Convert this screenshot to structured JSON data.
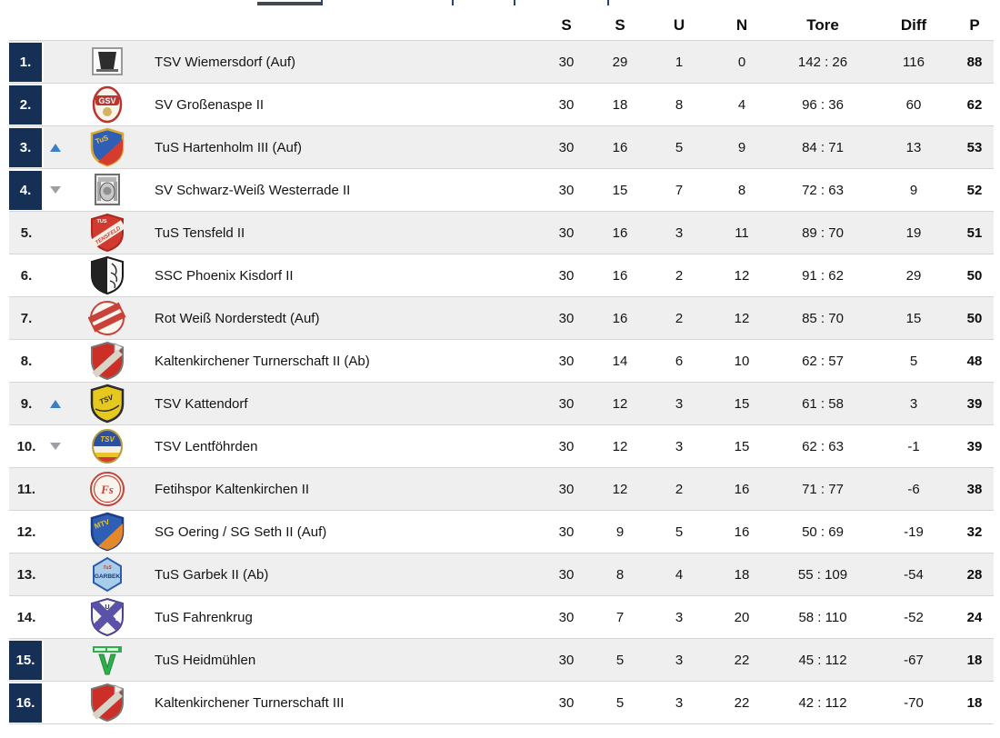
{
  "colors": {
    "highlight": "#152f55",
    "row-alt": "#efefef",
    "up": "#3a80c4",
    "down": "#9aa0a6",
    "separator": "#d5d5d5"
  },
  "header": {
    "columns": [
      "S",
      "S",
      "U",
      "N",
      "Tore",
      "Diff",
      "P"
    ]
  },
  "standings": [
    {
      "pos": "1.",
      "move": "",
      "team": "TSV Wiemersdorf (Auf)",
      "highlight": true,
      "played": "30",
      "won": "29",
      "drawn": "1",
      "lost": "0",
      "goals": "142 : 26",
      "diff": "116",
      "points": "88",
      "logo": {
        "type": "squareW",
        "bg": "#fbfbfb",
        "border": "#999999",
        "fg": "#2d2d2d"
      }
    },
    {
      "pos": "2.",
      "move": "",
      "team": "SV Großenaspe II",
      "highlight": true,
      "played": "30",
      "won": "18",
      "drawn": "8",
      "lost": "4",
      "goals": "96 : 36",
      "diff": "60",
      "points": "62",
      "logo": {
        "type": "gsv",
        "bg": "#f9f4ea",
        "border": "#bb352f",
        "band": "#bb352f",
        "text": "GSV",
        "textColor": "#ffffff",
        "accent": "#d4b262"
      }
    },
    {
      "pos": "3.",
      "move": "up",
      "team": "TuS Hartenholm III (Auf)",
      "highlight": true,
      "played": "30",
      "won": "16",
      "drawn": "5",
      "lost": "9",
      "goals": "84 : 71",
      "diff": "13",
      "points": "53",
      "logo": {
        "type": "shieldDiag",
        "c1": "#2e5fb5",
        "c2": "#d63c2e",
        "border": "#d9a833",
        "text": "TuS",
        "textColor": "#f2c23d"
      }
    },
    {
      "pos": "4.",
      "move": "down",
      "team": "SV Schwarz-Weiß Westerrade II",
      "highlight": true,
      "played": "30",
      "won": "15",
      "drawn": "7",
      "lost": "8",
      "goals": "72 : 63",
      "diff": "9",
      "points": "52",
      "logo": {
        "type": "emblem",
        "bg": "#ededed",
        "fg": "#6e6e6e"
      }
    },
    {
      "pos": "5.",
      "move": "",
      "team": "TuS Tensfeld II",
      "highlight": false,
      "played": "30",
      "won": "16",
      "drawn": "3",
      "lost": "11",
      "goals": "89 : 70",
      "diff": "19",
      "points": "51",
      "logo": {
        "type": "shieldBand",
        "bg": "#d03a2f",
        "border": "#a8291f",
        "band": "#f6f0e4",
        "text": "TENSFELD",
        "textColor": "#d03a2f",
        "topText": "TUS"
      }
    },
    {
      "pos": "6.",
      "move": "",
      "team": "SSC Phoenix Kisdorf II",
      "highlight": false,
      "played": "30",
      "won": "16",
      "drawn": "2",
      "lost": "12",
      "goals": "91 : 62",
      "diff": "29",
      "points": "50",
      "logo": {
        "type": "shieldSplit",
        "c1": "#222222",
        "c2": "#f7f7f7",
        "border": "#1a1a1a"
      }
    },
    {
      "pos": "7.",
      "move": "",
      "team": "Rot Weiß Norderstedt (Auf)",
      "highlight": false,
      "played": "30",
      "won": "16",
      "drawn": "2",
      "lost": "12",
      "goals": "85 : 70",
      "diff": "15",
      "points": "50",
      "logo": {
        "type": "circleBand",
        "bg": "#f9f5ef",
        "band": "#c8423a",
        "border": "#c8423a"
      }
    },
    {
      "pos": "8.",
      "move": "",
      "team": "Kaltenkirchener Turnerschaft II (Ab)",
      "highlight": false,
      "played": "30",
      "won": "14",
      "drawn": "6",
      "lost": "10",
      "goals": "62 : 57",
      "diff": "5",
      "points": "48",
      "logo": {
        "type": "shieldFold",
        "bg": "#cb2f28",
        "band": "#d9d4c8",
        "border": "#777777"
      }
    },
    {
      "pos": "9.",
      "move": "up",
      "team": "TSV Kattendorf",
      "highlight": false,
      "played": "30",
      "won": "12",
      "drawn": "3",
      "lost": "15",
      "goals": "61 : 58",
      "diff": "3",
      "points": "39",
      "logo": {
        "type": "shieldPlain",
        "bg": "#e7c81e",
        "border": "#2c2c2c",
        "text": "TSV",
        "textColor": "#2c2c2c"
      }
    },
    {
      "pos": "10.",
      "move": "down",
      "team": "TSV Lentföhrden",
      "highlight": false,
      "played": "30",
      "won": "12",
      "drawn": "3",
      "lost": "15",
      "goals": "62 : 63",
      "diff": "-1",
      "points": "39",
      "logo": {
        "type": "ovalStripes",
        "c1": "#2d4fa1",
        "c2": "#f6f0e2",
        "c3": "#d23a31",
        "c4": "#e9c42c",
        "text": "TSV",
        "textColor": "#e9c42c"
      }
    },
    {
      "pos": "11.",
      "move": "",
      "team": "Fetihspor Kaltenkirchen II",
      "highlight": false,
      "played": "30",
      "won": "12",
      "drawn": "2",
      "lost": "16",
      "goals": "71 : 77",
      "diff": "-6",
      "points": "38",
      "logo": {
        "type": "circleScript",
        "bg": "#f9f4ec",
        "border": "#c2443c",
        "text": "Fs",
        "textColor": "#c2443c"
      }
    },
    {
      "pos": "12.",
      "move": "",
      "team": "SG Oering / SG Seth II (Auf)",
      "highlight": false,
      "played": "30",
      "won": "9",
      "drawn": "5",
      "lost": "16",
      "goals": "50 : 69",
      "diff": "-19",
      "points": "32",
      "logo": {
        "type": "shieldDiag",
        "c1": "#2e5fb5",
        "c2": "#e3892b",
        "border": "#1d3d85",
        "text": "MTV",
        "textColor": "#e9c42c"
      }
    },
    {
      "pos": "13.",
      "move": "",
      "team": "TuS Garbek II (Ab)",
      "highlight": false,
      "played": "30",
      "won": "8",
      "drawn": "4",
      "lost": "18",
      "goals": "55 : 109",
      "diff": "-54",
      "points": "28",
      "logo": {
        "type": "hex",
        "bg": "#a8cde9",
        "border": "#2d5cae",
        "text": "GARBEK",
        "textColor": "#1a357f",
        "accent": "#c23a30",
        "accentText": "TuS"
      }
    },
    {
      "pos": "14.",
      "move": "",
      "team": "TuS Fahrenkrug",
      "highlight": false,
      "played": "30",
      "won": "7",
      "drawn": "3",
      "lost": "20",
      "goals": "58 : 110",
      "diff": "-52",
      "points": "24",
      "logo": {
        "type": "saltire",
        "bg": "#f8f6f1",
        "cross": "#5a51a8",
        "border": "#4a4190",
        "text": "TUS",
        "textColor": "#ffffff"
      }
    },
    {
      "pos": "15.",
      "move": "",
      "team": "TuS Heidmühlen",
      "highlight": true,
      "played": "30",
      "won": "5",
      "drawn": "3",
      "lost": "22",
      "goals": "45 : 112",
      "diff": "-67",
      "points": "18",
      "logo": {
        "type": "vBanner",
        "banner": "#2fae4d",
        "v": "#2fae4d",
        "bg": "#ffffff"
      }
    },
    {
      "pos": "16.",
      "move": "",
      "team": "Kaltenkirchener Turnerschaft III",
      "highlight": true,
      "played": "30",
      "won": "5",
      "drawn": "3",
      "lost": "22",
      "goals": "42 : 112",
      "diff": "-70",
      "points": "18",
      "logo": {
        "type": "shieldFold",
        "bg": "#cb2f28",
        "band": "#d9d4c8",
        "border": "#777777"
      }
    }
  ]
}
